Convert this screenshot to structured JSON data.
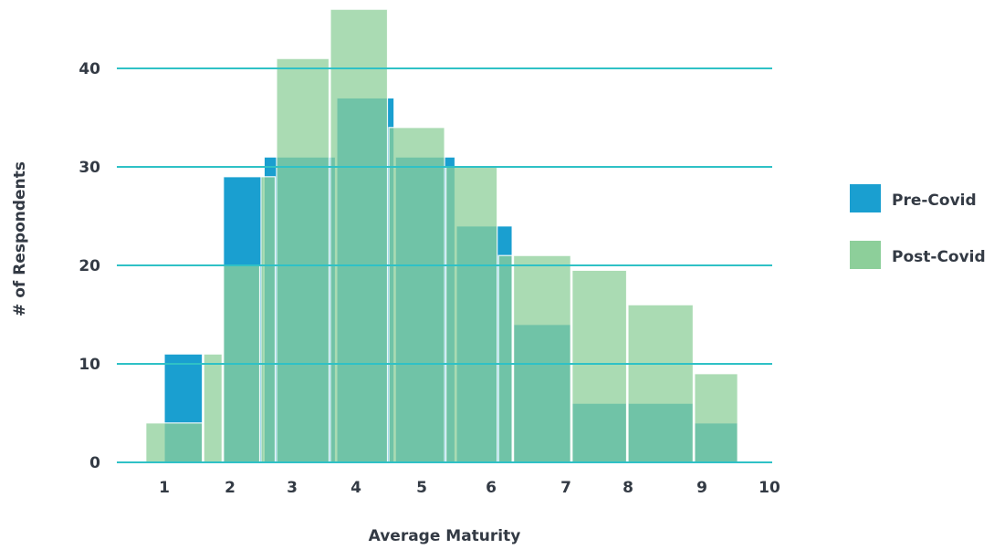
{
  "chart_data": {
    "type": "bar",
    "xlabel": "Average Maturity",
    "ylabel": "# of Respondents",
    "xlim": [
      0.55,
      10
    ],
    "ylim": [
      0,
      46
    ],
    "x_ticks": [
      "1",
      "2",
      "3",
      "4",
      "5",
      "6",
      "7",
      "8",
      "9",
      "10"
    ],
    "y_ticks": [
      "0",
      "10",
      "20",
      "30",
      "40"
    ],
    "grid": "horizontal",
    "legend_position": "right",
    "series": [
      {
        "name": "Pre-Covid",
        "color": "#1a9fd0",
        "bins": [
          {
            "x0": 1.0,
            "x1": 1.6,
            "value": 11
          },
          {
            "x0": 1.9,
            "x1": 2.55,
            "value": 29
          },
          {
            "x0": 2.55,
            "x1": 3.7,
            "value": 31
          },
          {
            "x0": 3.7,
            "x1": 4.6,
            "value": 37
          },
          {
            "x0": 4.6,
            "x1": 5.5,
            "value": 31
          },
          {
            "x0": 5.5,
            "x1": 6.3,
            "value": 24
          },
          {
            "x0": 6.3,
            "x1": 7.1,
            "value": 14
          },
          {
            "x0": 7.1,
            "x1": 8.0,
            "value": 6
          },
          {
            "x0": 8.0,
            "x1": 8.9,
            "value": 6
          },
          {
            "x0": 8.9,
            "x1": 9.55,
            "value": 4
          }
        ]
      },
      {
        "name": "Post-Covid",
        "color": "#8dcf9a",
        "bins": [
          {
            "x0": 0.72,
            "x1": 1.6,
            "value": 4
          },
          {
            "x0": 1.6,
            "x1": 1.9,
            "value": 11
          },
          {
            "x0": 1.9,
            "x1": 2.5,
            "value": 20
          },
          {
            "x0": 2.5,
            "x1": 2.75,
            "value": 29
          },
          {
            "x0": 2.75,
            "x1": 3.6,
            "value": 41
          },
          {
            "x0": 3.6,
            "x1": 4.5,
            "value": 46
          },
          {
            "x0": 4.5,
            "x1": 5.35,
            "value": 34
          },
          {
            "x0": 5.35,
            "x1": 6.1,
            "value": 30
          },
          {
            "x0": 6.1,
            "x1": 6.3,
            "value": 21
          },
          {
            "x0": 6.3,
            "x1": 7.1,
            "value": 21
          },
          {
            "x0": 7.1,
            "x1": 8.0,
            "value": 19.5
          },
          {
            "x0": 8.0,
            "x1": 8.9,
            "value": 16
          },
          {
            "x0": 8.9,
            "x1": 9.55,
            "value": 9
          }
        ]
      }
    ],
    "gridline_color": "#2fc1c6"
  }
}
